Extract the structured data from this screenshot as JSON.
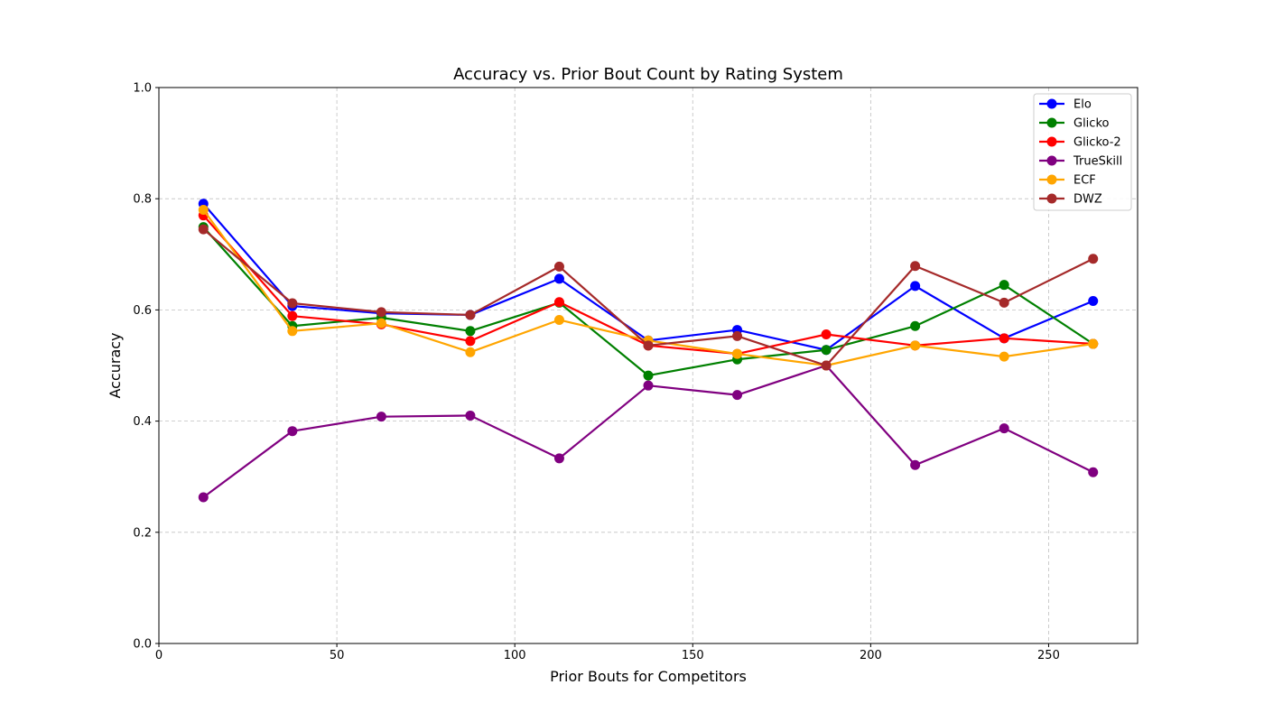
{
  "chart_data": {
    "type": "line",
    "title": "Accuracy vs. Prior Bout Count by Rating System",
    "xlabel": "Prior Bouts for Competitors",
    "ylabel": "Accuracy",
    "xlim": [
      0,
      275
    ],
    "ylim": [
      0.0,
      1.0
    ],
    "xticks": [
      0,
      50,
      100,
      150,
      200,
      250
    ],
    "xtick_labels": [
      "0",
      "50",
      "100",
      "150",
      "200",
      "250"
    ],
    "yticks": [
      0.0,
      0.2,
      0.4,
      0.6,
      0.8,
      1.0
    ],
    "ytick_labels": [
      "0.0",
      "0.2",
      "0.4",
      "0.6",
      "0.8",
      "1.0"
    ],
    "grid": true,
    "legend_position": "top-right",
    "x": [
      12.5,
      37.5,
      62.5,
      87.5,
      112.5,
      137.5,
      162.5,
      187.5,
      212.5,
      237.5,
      262.5
    ],
    "series": [
      {
        "name": "Elo",
        "color": "#0000ff",
        "values": [
          0.791,
          0.607,
          0.594,
          0.591,
          0.656,
          0.545,
          0.564,
          0.528,
          0.643,
          0.549,
          0.616
        ]
      },
      {
        "name": "Glicko",
        "color": "#008000",
        "values": [
          0.749,
          0.571,
          0.586,
          0.562,
          0.613,
          0.482,
          0.511,
          0.528,
          0.571,
          0.645,
          0.539
        ]
      },
      {
        "name": "Glicko-2",
        "color": "#ff0000",
        "values": [
          0.77,
          0.589,
          0.574,
          0.544,
          0.614,
          0.536,
          0.521,
          0.556,
          0.536,
          0.549,
          0.539
        ]
      },
      {
        "name": "TrueSkill",
        "color": "#800080",
        "values": [
          0.263,
          0.382,
          0.408,
          0.41,
          0.333,
          0.464,
          0.447,
          0.5,
          0.321,
          0.387,
          0.308
        ]
      },
      {
        "name": "ECF",
        "color": "#ffa500",
        "values": [
          0.78,
          0.562,
          0.576,
          0.524,
          0.582,
          0.545,
          0.521,
          0.5,
          0.536,
          0.516,
          0.539
        ]
      },
      {
        "name": "DWZ",
        "color": "#a52a2a",
        "values": [
          0.745,
          0.612,
          0.596,
          0.591,
          0.678,
          0.536,
          0.553,
          0.5,
          0.679,
          0.613,
          0.692
        ]
      }
    ]
  }
}
